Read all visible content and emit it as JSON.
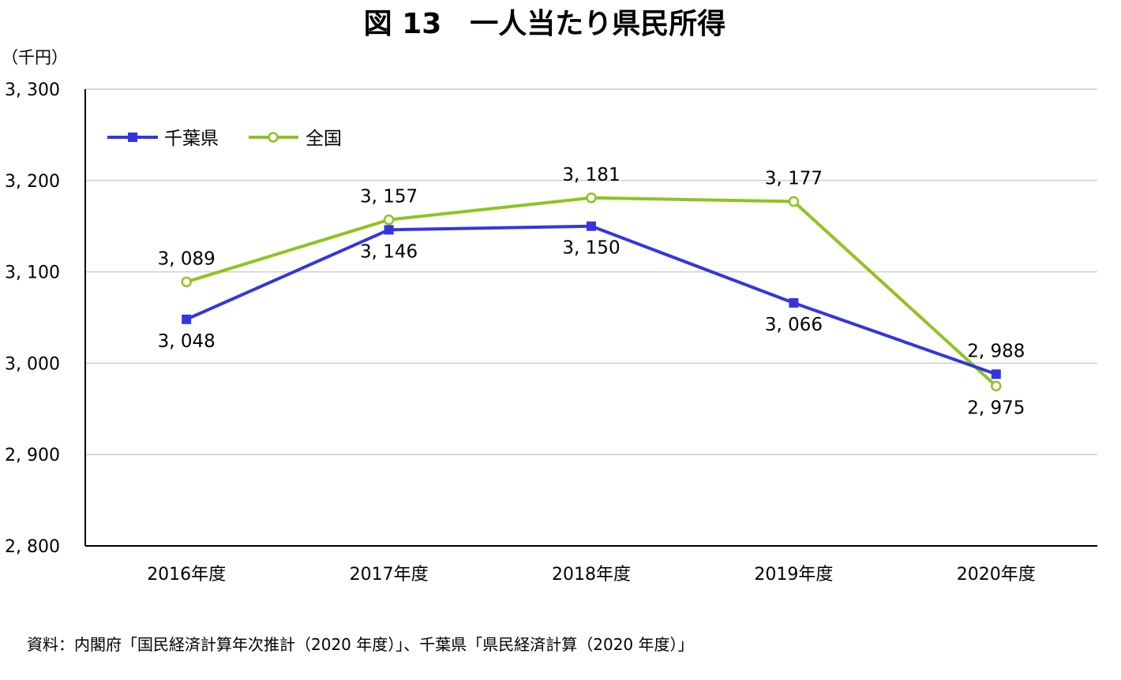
{
  "chart_data": {
    "type": "line",
    "title": "図 13　一人当たり県民所得",
    "unit_label": "（千円）",
    "categories": [
      "2016年度",
      "2017年度",
      "2018年度",
      "2019年度",
      "2020年度"
    ],
    "ylim": [
      2800,
      3300
    ],
    "yticks": [
      3300,
      3200,
      3100,
      3000,
      2900,
      2800
    ],
    "ytick_labels": [
      "3, 300",
      "3, 200",
      "3, 100",
      "3, 000",
      "2, 900",
      "2, 800"
    ],
    "grid": true,
    "legend_position": "top-left",
    "series": [
      {
        "name": "千葉県",
        "color": "#3535e0",
        "marker": "filled-square",
        "values": [
          3048,
          3146,
          3150,
          3066,
          2988
        ],
        "labels": [
          "3, 048",
          "3, 146",
          "3, 150",
          "3, 066",
          "2, 988"
        ],
        "label_side": [
          "below",
          "below",
          "below",
          "below",
          "above"
        ]
      },
      {
        "name": "全国",
        "color": "#8fc31f",
        "marker": "hollow-circle",
        "values": [
          3089,
          3157,
          3181,
          3177,
          2975
        ],
        "labels": [
          "3, 089",
          "3, 157",
          "3, 181",
          "3, 177",
          "2, 975"
        ],
        "label_side": [
          "above",
          "above",
          "above",
          "above",
          "below"
        ]
      }
    ],
    "source": "資料：内閣府「国民経済計算年次推計（2020 年度）」、千葉県「県民経済計算（2020 年度）」"
  }
}
